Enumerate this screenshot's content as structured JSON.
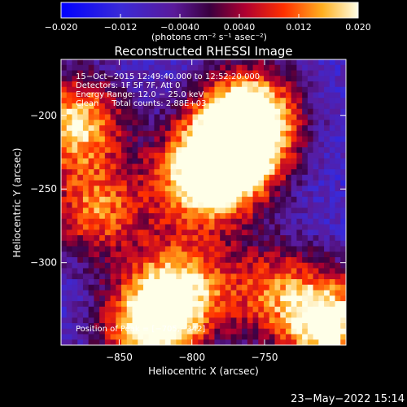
{
  "colorbar": {
    "min": -0.02,
    "max": 0.02,
    "tick_labels": [
      "−0.020",
      "−0.012",
      "−0.0040",
      "0.0040",
      "0.012",
      "0.020"
    ],
    "tick_values": [
      -0.02,
      -0.012,
      -0.004,
      0.004,
      0.012,
      0.02
    ],
    "unit_label": "(photons cm⁻² s⁻¹ asec⁻²)"
  },
  "chart_data": {
    "type": "heatmap",
    "title": "Reconstructed RHESSI Image",
    "xlabel": "Heliocentric X (arcsec)",
    "ylabel": "Heliocentric Y (arcsec)",
    "xlim": [
      -890,
      -694
    ],
    "ylim": [
      -356,
      -162
    ],
    "x_ticks": [
      -850,
      -800,
      -750
    ],
    "x_tick_labels": [
      "−850",
      "−800",
      "−750"
    ],
    "y_ticks": [
      -200,
      -250,
      -300
    ],
    "y_tick_labels": [
      "−200",
      "−250",
      "−300"
    ],
    "colormap": "blue-purple-red-yellow-white",
    "grid": false,
    "peak_position": [
      -705,
      -342
    ],
    "sources": [
      {
        "x": -772,
        "y": -226,
        "intensity": 0.02
      },
      {
        "x": -760,
        "y": -200,
        "intensity": 0.02
      },
      {
        "x": -795,
        "y": -245,
        "intensity": 0.014
      },
      {
        "x": -880,
        "y": -205,
        "intensity": 0.016
      },
      {
        "x": -865,
        "y": -265,
        "intensity": 0.01
      },
      {
        "x": -808,
        "y": -318,
        "intensity": 0.014
      },
      {
        "x": -830,
        "y": -345,
        "intensity": 0.016
      },
      {
        "x": -705,
        "y": -342,
        "intensity": 0.02
      },
      {
        "x": -745,
        "y": -318,
        "intensity": 0.006
      }
    ],
    "annotations": {
      "time_range": "15−Oct−2015 12:49:40.000 to 12:52:20.000",
      "detectors": "Detectors: 1F 5F 7F, Att 0",
      "energy": "Energy Range: 12.0 − 25.0 keV",
      "clean": "Clean     Total counts: 2.88E+03",
      "peak": "Position of Peak = [−705,−342]"
    }
  },
  "footer": {
    "date": "23−May−2022 15:14"
  }
}
